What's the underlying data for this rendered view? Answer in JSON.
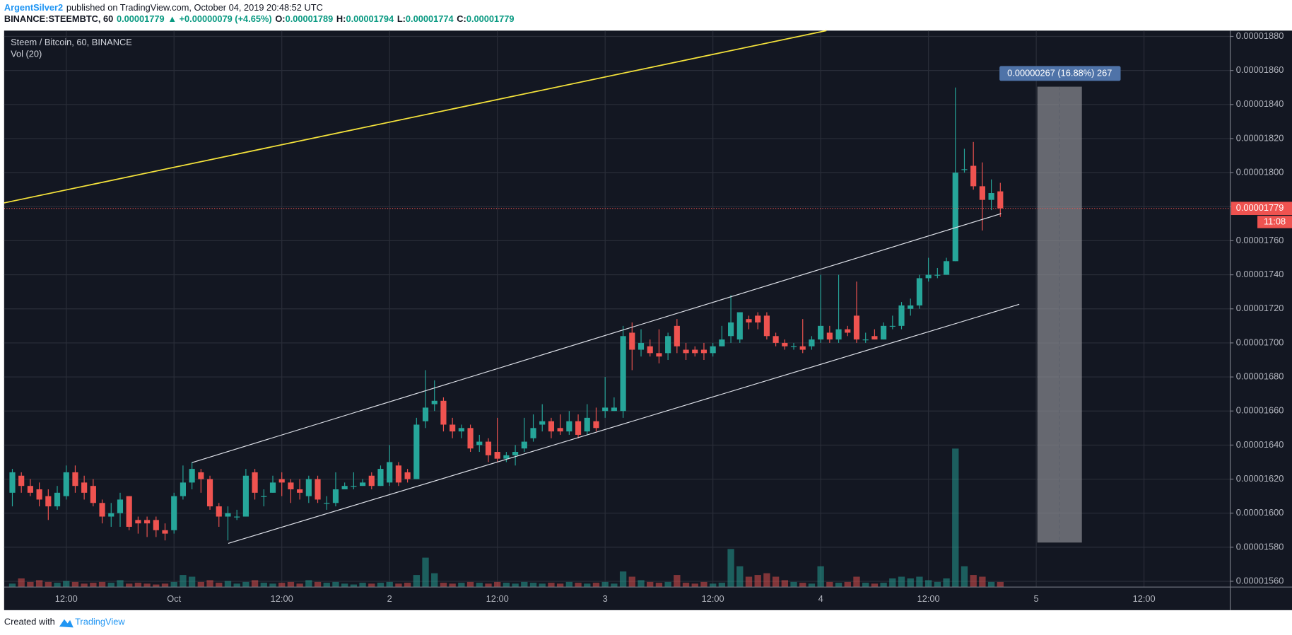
{
  "header": {
    "author": "ArgentSilver2",
    "published": "published on TradingView.com, October 04, 2019 20:48:52 UTC",
    "symbol": "BINANCE:STEEMBTC, 60",
    "last": "0.00001779",
    "change": "▲ +0.00000079 (+4.65%)",
    "o_label": "O:",
    "o": "0.00001789",
    "h_label": "H:",
    "h": "0.00001794",
    "l_label": "L:",
    "l": "0.00001774",
    "c_label": "C:",
    "c": "0.00001779"
  },
  "footer": {
    "created": "Created with",
    "brand": "TradingView"
  },
  "chart_data": {
    "type": "candlestick",
    "title": "Steem / Bitcoin, 60, BINANCE",
    "volume_label": "Vol (20)",
    "measure": "0.00000267 (16.88%) 267",
    "price_line": {
      "value": 1.779e-05,
      "label": "0.00001779",
      "countdown": "11:08"
    },
    "up_color": "#26a69a",
    "down_color": "#ef5350",
    "grid": true,
    "ylim": [
      1.5566e-05,
      1.8834e-05
    ],
    "yticks": [
      {
        "value": 1.56e-05,
        "label": "0.00001560"
      },
      {
        "value": 1.58e-05,
        "label": "0.00001580"
      },
      {
        "value": 1.6e-05,
        "label": "0.00001600"
      },
      {
        "value": 1.62e-05,
        "label": "0.00001620"
      },
      {
        "value": 1.64e-05,
        "label": "0.00001640"
      },
      {
        "value": 1.66e-05,
        "label": "0.00001660"
      },
      {
        "value": 1.68e-05,
        "label": "0.00001680"
      },
      {
        "value": 1.7e-05,
        "label": "0.00001700"
      },
      {
        "value": 1.72e-05,
        "label": "0.00001720"
      },
      {
        "value": 1.74e-05,
        "label": "0.00001740"
      },
      {
        "value": 1.76e-05,
        "label": "0.00001760"
      },
      {
        "value": 1.78e-05,
        "label": "0.00001780"
      },
      {
        "value": 1.8e-05,
        "label": "0.00001800"
      },
      {
        "value": 1.82e-05,
        "label": "0.00001820"
      },
      {
        "value": 1.84e-05,
        "label": "0.00001840"
      },
      {
        "value": 1.86e-05,
        "label": "0.00001860"
      },
      {
        "value": 1.88e-05,
        "label": "0.00001880"
      }
    ],
    "categories": [
      null,
      null,
      null,
      null,
      null,
      null,
      "12:00",
      null,
      null,
      null,
      null,
      null,
      null,
      null,
      null,
      null,
      null,
      null,
      "Oct",
      null,
      null,
      null,
      null,
      null,
      null,
      null,
      null,
      null,
      null,
      null,
      "12:00",
      null,
      null,
      null,
      null,
      null,
      null,
      null,
      null,
      null,
      null,
      null,
      "2",
      null,
      null,
      null,
      null,
      null,
      null,
      null,
      null,
      null,
      null,
      null,
      "12:00",
      null,
      null,
      null,
      null,
      null,
      null,
      null,
      null,
      null,
      null,
      null,
      "3",
      null,
      null,
      null,
      null,
      null,
      null,
      null,
      null,
      null,
      null,
      null,
      "12:00",
      null,
      null,
      null,
      null,
      null,
      null,
      null,
      null,
      null,
      null,
      null,
      "4",
      null,
      null,
      null,
      null,
      null,
      null,
      null,
      null,
      null,
      null,
      null,
      "12:00",
      null,
      null,
      null,
      null,
      null,
      null,
      null,
      null,
      null,
      null,
      null,
      "5",
      null,
      null,
      null,
      null,
      null,
      null,
      null,
      null,
      null,
      null,
      null,
      "12:00"
    ],
    "open": [
      1.612e-05,
      1.622e-05,
      1.616e-05,
      1.614e-05,
      1.61e-05,
      1.604e-05,
      1.61e-05,
      1.624e-05,
      1.618e-05,
      1.616e-05,
      1.606e-05,
      1.598e-05,
      1.6e-05,
      1.61e-05,
      1.596e-05,
      1.596e-05,
      1.596e-05,
      1.59e-05,
      1.59e-05,
      1.61e-05,
      1.618e-05,
      1.624e-05,
      1.62e-05,
      1.604e-05,
      1.598e-05,
      1.598e-05,
      1.598e-05,
      1.624e-05,
      1.61e-05,
      1.612e-05,
      1.62e-05,
      1.618e-05,
      1.614e-05,
      1.61e-05,
      1.62e-05,
      1.606e-05,
      1.606e-05,
      1.614e-05,
      1.616e-05,
      1.616e-05,
      1.622e-05,
      1.616e-05,
      1.618e-05,
      1.628e-05,
      1.624e-05,
      1.62e-05,
      1.654e-05,
      1.664e-05,
      1.666e-05,
      1.652e-05,
      1.648e-05,
      1.65e-05,
      1.64e-05,
      1.642e-05,
      1.636e-05,
      1.632e-05,
      1.634e-05,
      1.638e-05,
      1.644e-05,
      1.652e-05,
      1.654e-05,
      1.65e-05,
      1.648e-05,
      1.654e-05,
      1.648e-05,
      1.654e-05,
      1.66e-05,
      1.66e-05,
      1.66e-05,
      1.706e-05,
      1.696e-05,
      1.698e-05,
      1.694e-05,
      1.694e-05,
      1.71e-05,
      1.696e-05,
      1.696e-05,
      1.696e-05,
      1.694e-05,
      1.698e-05,
      1.704e-05,
      1.702e-05,
      1.714e-05,
      1.716e-05,
      1.716e-05,
      1.704e-05,
      1.7e-05,
      1.698e-05,
      1.698e-05,
      1.698e-05,
      1.702e-05,
      1.706e-05,
      1.702e-05,
      1.708e-05,
      1.716e-05,
      1.702e-05,
      1.704e-05,
      1.702e-05,
      1.71e-05,
      1.71e-05,
      1.72e-05,
      1.722e-05,
      1.738e-05,
      1.74e-05,
      1.74e-05,
      1.748e-05,
      1.802e-05,
      1.804e-05,
      1.792e-05,
      1.784e-05,
      1.789e-05,
      null,
      null,
      null,
      null,
      null,
      null,
      null,
      null,
      null,
      null,
      null,
      null,
      null,
      null,
      null,
      null
    ],
    "high": [
      1.626e-05,
      1.624e-05,
      1.62e-05,
      1.618e-05,
      1.614e-05,
      1.616e-05,
      1.628e-05,
      1.628e-05,
      1.622e-05,
      1.62e-05,
      1.608e-05,
      1.606e-05,
      1.612e-05,
      1.61e-05,
      1.598e-05,
      1.598e-05,
      1.598e-05,
      1.594e-05,
      1.612e-05,
      1.628e-05,
      1.63e-05,
      1.626e-05,
      1.622e-05,
      1.606e-05,
      1.604e-05,
      1.602e-05,
      1.626e-05,
      1.626e-05,
      1.614e-05,
      1.622e-05,
      1.624e-05,
      1.62e-05,
      1.62e-05,
      1.622e-05,
      1.622e-05,
      1.61e-05,
      1.624e-05,
      1.618e-05,
      1.624e-05,
      1.62e-05,
      1.624e-05,
      1.628e-05,
      1.64e-05,
      1.63e-05,
      1.626e-05,
      1.656e-05,
      1.684e-05,
      1.678e-05,
      1.668e-05,
      1.656e-05,
      1.652e-05,
      1.652e-05,
      1.646e-05,
      1.644e-05,
      1.656e-05,
      1.636e-05,
      1.64e-05,
      1.656e-05,
      1.658e-05,
      1.664e-05,
      1.656e-05,
      1.658e-05,
      1.66e-05,
      1.658e-05,
      1.664e-05,
      1.662e-05,
      1.68e-05,
      1.668e-05,
      1.71e-05,
      1.712e-05,
      1.708e-05,
      1.702e-05,
      1.708e-05,
      1.706e-05,
      1.714e-05,
      1.7e-05,
      1.698e-05,
      1.7e-05,
      1.7e-05,
      1.71e-05,
      1.728e-05,
      1.718e-05,
      1.716e-05,
      1.718e-05,
      1.718e-05,
      1.706e-05,
      1.702e-05,
      1.7e-05,
      1.714e-05,
      1.704e-05,
      1.74e-05,
      1.71e-05,
      1.74e-05,
      1.71e-05,
      1.736e-05,
      1.706e-05,
      1.708e-05,
      1.712e-05,
      1.716e-05,
      1.724e-05,
      1.726e-05,
      1.74e-05,
      1.75e-05,
      1.744e-05,
      1.75e-05,
      1.85e-05,
      1.814e-05,
      1.818e-05,
      1.806e-05,
      1.796e-05,
      1.794e-05,
      null,
      null,
      null,
      null,
      null,
      null,
      null,
      null,
      null,
      null,
      null,
      null,
      null,
      null,
      null,
      null
    ],
    "low": [
      1.604e-05,
      1.612e-05,
      1.61e-05,
      1.604e-05,
      1.596e-05,
      1.602e-05,
      1.608e-05,
      1.612e-05,
      1.608e-05,
      1.604e-05,
      1.594e-05,
      1.592e-05,
      1.592e-05,
      1.59e-05,
      1.588e-05,
      1.586e-05,
      1.586e-05,
      1.584e-05,
      1.588e-05,
      1.608e-05,
      1.614e-05,
      1.612e-05,
      1.602e-05,
      1.592e-05,
      1.584e-05,
      1.596e-05,
      1.598e-05,
      1.608e-05,
      1.604e-05,
      1.612e-05,
      1.61e-05,
      1.606e-05,
      1.608e-05,
      1.606e-05,
      1.606e-05,
      1.602e-05,
      1.604e-05,
      1.614e-05,
      1.614e-05,
      1.616e-05,
      1.614e-05,
      1.616e-05,
      1.616e-05,
      1.616e-05,
      1.618e-05,
      1.62e-05,
      1.65e-05,
      1.66e-05,
      1.648e-05,
      1.644e-05,
      1.644e-05,
      1.636e-05,
      1.636e-05,
      1.63e-05,
      1.63e-05,
      1.63e-05,
      1.628e-05,
      1.636e-05,
      1.642e-05,
      1.648e-05,
      1.644e-05,
      1.646e-05,
      1.646e-05,
      1.644e-05,
      1.646e-05,
      1.648e-05,
      1.656e-05,
      1.66e-05,
      1.656e-05,
      1.684e-05,
      1.692e-05,
      1.692e-05,
      1.688e-05,
      1.69e-05,
      1.694e-05,
      1.69e-05,
      1.692e-05,
      1.69e-05,
      1.692e-05,
      1.698e-05,
      1.7e-05,
      1.7e-05,
      1.708e-05,
      1.708e-05,
      1.702e-05,
      1.698e-05,
      1.696e-05,
      1.696e-05,
      1.694e-05,
      1.696e-05,
      1.7e-05,
      1.7e-05,
      1.7e-05,
      1.704e-05,
      1.7e-05,
      1.7e-05,
      1.702e-05,
      1.702e-05,
      1.708e-05,
      1.708e-05,
      1.716e-05,
      1.72e-05,
      1.736e-05,
      1.738e-05,
      1.74e-05,
      1.748e-05,
      1.8e-05,
      1.79e-05,
      1.766e-05,
      1.778e-05,
      1.774e-05,
      null,
      null,
      null,
      null,
      null,
      null,
      null,
      null,
      null,
      null,
      null,
      null,
      null,
      null,
      null,
      null
    ],
    "close": [
      1.624e-05,
      1.616e-05,
      1.612e-05,
      1.608e-05,
      1.604e-05,
      1.612e-05,
      1.624e-05,
      1.616e-05,
      1.612e-05,
      1.606e-05,
      1.598e-05,
      1.6e-05,
      1.608e-05,
      1.592e-05,
      1.594e-05,
      1.594e-05,
      1.59e-05,
      1.588e-05,
      1.61e-05,
      1.618e-05,
      1.626e-05,
      1.62e-05,
      1.604e-05,
      1.598e-05,
      1.6e-05,
      1.598e-05,
      1.622e-05,
      1.612e-05,
      1.61e-05,
      1.618e-05,
      1.618e-05,
      1.614e-05,
      1.612e-05,
      1.62e-05,
      1.608e-05,
      1.606e-05,
      1.614e-05,
      1.616e-05,
      1.616e-05,
      1.618e-05,
      1.616e-05,
      1.626e-05,
      1.63e-05,
      1.618e-05,
      1.62e-05,
      1.652e-05,
      1.662e-05,
      1.666e-05,
      1.652e-05,
      1.648e-05,
      1.65e-05,
      1.638e-05,
      1.642e-05,
      1.634e-05,
      1.632e-05,
      1.634e-05,
      1.636e-05,
      1.642e-05,
      1.65e-05,
      1.654e-05,
      1.648e-05,
      1.648e-05,
      1.654e-05,
      1.646e-05,
      1.656e-05,
      1.65e-05,
      1.662e-05,
      1.662e-05,
      1.704e-05,
      1.696e-05,
      1.7e-05,
      1.694e-05,
      1.692e-05,
      1.704e-05,
      1.698e-05,
      1.694e-05,
      1.694e-05,
      1.694e-05,
      1.698e-05,
      1.702e-05,
      1.712e-05,
      1.718e-05,
      1.712e-05,
      1.712e-05,
      1.704e-05,
      1.7e-05,
      1.698e-05,
      1.698e-05,
      1.696e-05,
      1.702e-05,
      1.71e-05,
      1.702e-05,
      1.708e-05,
      1.706e-05,
      1.702e-05,
      1.702e-05,
      1.702e-05,
      1.71e-05,
      1.71e-05,
      1.722e-05,
      1.722e-05,
      1.738e-05,
      1.74e-05,
      1.74e-05,
      1.748e-05,
      1.8e-05,
      1.802e-05,
      1.792e-05,
      1.784e-05,
      1.788e-05,
      1.779e-05,
      null,
      null,
      null,
      null,
      null,
      null,
      null,
      null,
      null,
      null,
      null,
      null,
      null,
      null,
      null,
      null
    ],
    "volume": [
      4,
      10,
      6,
      8,
      6,
      5,
      7,
      6,
      4,
      5,
      6,
      5,
      8,
      4,
      5,
      4,
      3,
      4,
      6,
      14,
      12,
      6,
      8,
      5,
      7,
      4,
      6,
      8,
      5,
      4,
      5,
      6,
      4,
      8,
      6,
      5,
      6,
      4,
      3,
      5,
      4,
      5,
      6,
      4,
      5,
      14,
      34,
      16,
      5,
      4,
      5,
      6,
      5,
      4,
      6,
      5,
      4,
      6,
      5,
      4,
      5,
      4,
      6,
      5,
      4,
      5,
      6,
      4,
      18,
      12,
      8,
      6,
      5,
      6,
      14,
      5,
      4,
      6,
      4,
      5,
      44,
      24,
      12,
      14,
      16,
      12,
      8,
      6,
      5,
      4,
      24,
      6,
      5,
      6,
      12,
      5,
      4,
      5,
      10,
      12,
      10,
      12,
      8,
      6,
      10,
      160,
      24,
      14,
      12,
      6,
      6,
      null,
      null,
      null,
      null,
      null,
      null,
      null,
      null,
      null,
      null,
      null,
      null,
      null,
      null,
      null,
      null
    ]
  }
}
